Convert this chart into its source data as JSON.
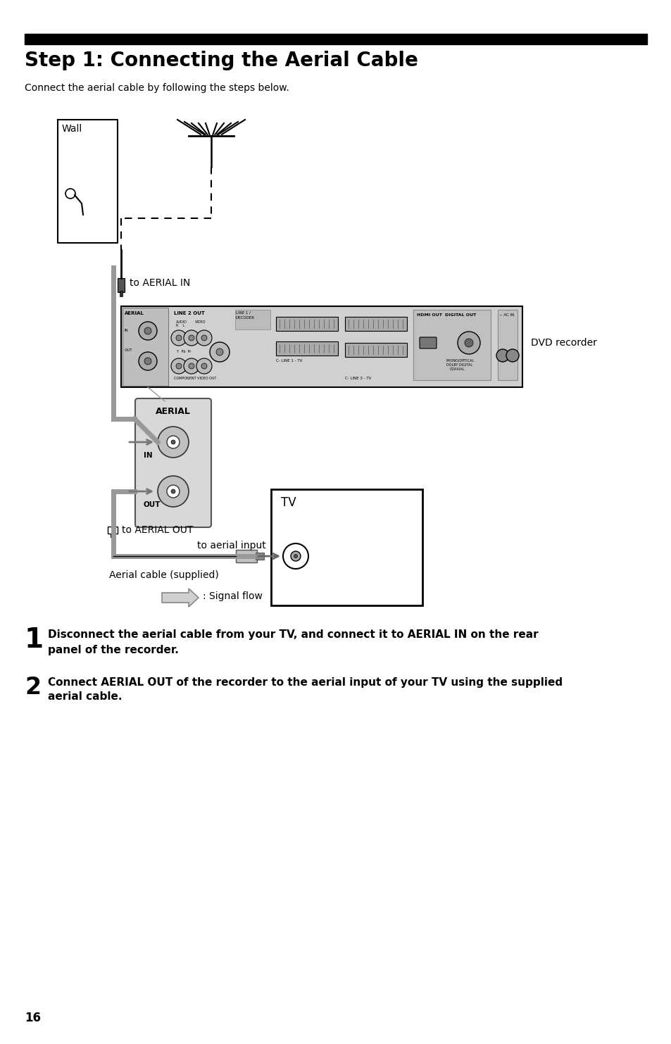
{
  "title": "Step 1: Connecting the Aerial Cable",
  "subtitle": "Connect the aerial cable by following the steps below.",
  "step1_num": "1",
  "step1_line1": "Disconnect the aerial cable from your TV, and connect it to AERIAL IN on the rear",
  "step1_line2": "panel of the recorder.",
  "step2_num": "2",
  "step2_line1": "Connect AERIAL OUT of the recorder to the aerial input of your TV using the supplied",
  "step2_line2": "aerial cable.",
  "label_wall": "Wall",
  "label_aerial_in": "to AERIAL IN",
  "label_aerial_out": "to AERIAL OUT",
  "label_aerial_input": "to aerial input",
  "label_aerial_cable": "Aerial cable (supplied)",
  "label_dvd": "DVD recorder",
  "label_tv": "TV",
  "label_aerial_box": "AERIAL",
  "label_in": "IN",
  "label_out": "OUT",
  "label_signal_flow": ": Signal flow",
  "page_num": "16",
  "bg_color": "#ffffff",
  "bar_color": "#000000",
  "gray_cable": "#888888",
  "light_gray": "#c8c8c8",
  "med_gray": "#aaaaaa",
  "dark_gray": "#555555"
}
